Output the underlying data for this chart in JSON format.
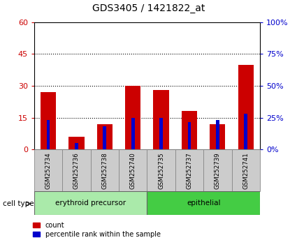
{
  "title": "GDS3405 / 1421822_at",
  "samples": [
    "GSM252734",
    "GSM252736",
    "GSM252738",
    "GSM252740",
    "GSM252735",
    "GSM252737",
    "GSM252739",
    "GSM252741"
  ],
  "count_values": [
    27,
    6,
    12,
    30,
    28,
    18,
    12,
    40
  ],
  "percentile_values": [
    14,
    3,
    11,
    15,
    15,
    13,
    14,
    17
  ],
  "ylim_left": [
    0,
    60
  ],
  "ylim_right": [
    0,
    100
  ],
  "yticks_left": [
    0,
    15,
    30,
    45,
    60
  ],
  "ytick_labels_right": [
    "0%",
    "25%",
    "50%",
    "75%",
    "100%"
  ],
  "bar_color_count": "#cc0000",
  "bar_color_percentile": "#0000cc",
  "group1_label": "erythroid precursor",
  "group2_label": "epithelial",
  "group1_color": "#aaeaaa",
  "group2_color": "#44cc44",
  "cell_type_label": "cell type",
  "legend_count": "count",
  "legend_percentile": "percentile rank within the sample",
  "background_color": "#ffffff",
  "tick_label_bg": "#cccccc"
}
